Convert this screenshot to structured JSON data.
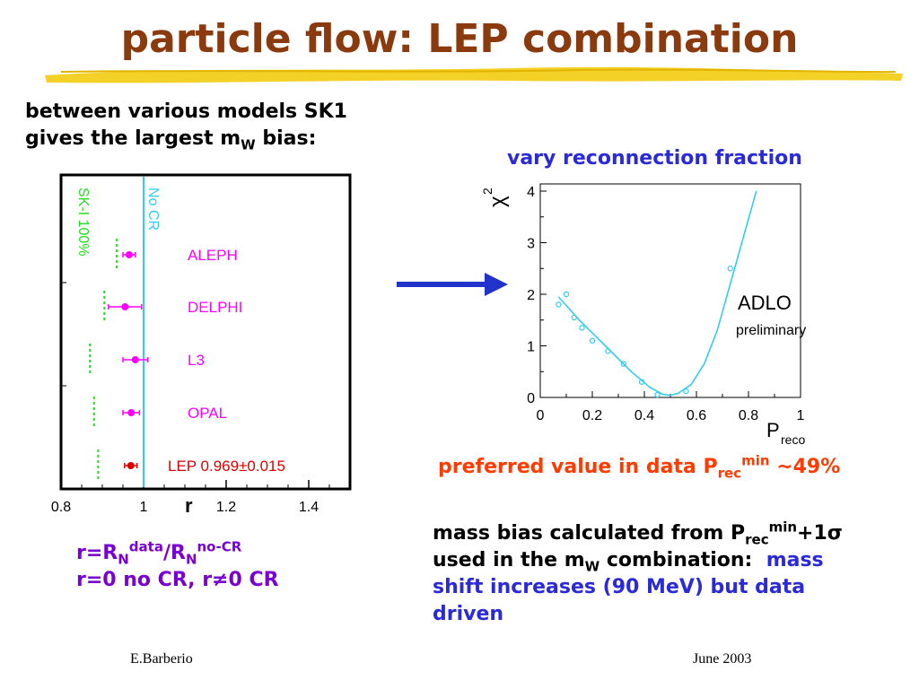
{
  "slide": {
    "title": "particle flow: LEP combination",
    "intro": {
      "line1": "between various models SK1",
      "line2_pre": "gives the largest m",
      "line2_sub": "W",
      "line2_post": " bias:"
    },
    "vary_label": "vary reconnection fraction",
    "preferred": {
      "pre": "preferred value in data P",
      "sub": "rec",
      "sup": "min",
      "post": " ~49%"
    },
    "bias": {
      "l1_pre": "mass bias calculated from P",
      "l1_sub": "rec",
      "l1_sup": "min",
      "l1_post": "+1σ",
      "l2_pre": "used in the m",
      "l2_sub": "W",
      "l2_post": " combination:",
      "l2_blue": "mass",
      "l3": "shift increases (90 MeV) but data",
      "l4": "driven"
    },
    "rdef": {
      "l1_a": "r=R",
      "l1_sub1": "N",
      "l1_sup1": "data",
      "l1_b": "/R",
      "l1_sub2": "N",
      "l1_sup2": "no-CR",
      "l2": "r=0 no CR, r≠0 CR"
    },
    "footer_left": "E.Barberio",
    "footer_right": "June 2003"
  },
  "colors": {
    "title": "#8b3a0e",
    "highlighter": "#f2c900",
    "magenta": "#ff00ff",
    "cyan": "#33ccee",
    "green": "#22dd22",
    "lep_red": "#dd0000",
    "arrow_blue": "#2233cc"
  },
  "chart_data": [
    {
      "type": "scatter",
      "xlabel": "r",
      "xlim": [
        0.8,
        1.5
      ],
      "xticks": [
        "0.8",
        "1",
        "1.2",
        "1.4"
      ],
      "xtick_values": [
        0.8,
        1.0,
        1.2,
        1.4
      ],
      "reference_line": {
        "x": 1.0,
        "label": "No CR"
      },
      "sk1_label": "SK-I 100%",
      "series": [
        {
          "name": "ALEPH",
          "r": 0.965,
          "err": 0.015,
          "sk1": 0.935
        },
        {
          "name": "DELPHI",
          "r": 0.955,
          "err": 0.04,
          "sk1": 0.905
        },
        {
          "name": "L3",
          "r": 0.98,
          "err": 0.03,
          "sk1": 0.87
        },
        {
          "name": "OPAL",
          "r": 0.97,
          "err": 0.02,
          "sk1": 0.88
        },
        {
          "name": "LEP 0.969±0.015",
          "r": 0.969,
          "err": 0.015,
          "sk1": 0.89
        }
      ]
    },
    {
      "type": "line",
      "title": "ADLO",
      "subtitle": "preliminary",
      "xlabel_main": "P",
      "xlabel_sub": "reco",
      "ylabel_main": "χ",
      "ylabel_sup": "2",
      "xlim": [
        0,
        1
      ],
      "ylim": [
        0,
        4
      ],
      "xticks": [
        "0",
        "0.2",
        "0.4",
        "0.6",
        "0.8",
        "1"
      ],
      "xtick_values": [
        0,
        0.2,
        0.4,
        0.6,
        0.8,
        1.0
      ],
      "yticks": [
        "0",
        "1",
        "2",
        "3",
        "4"
      ],
      "ytick_values": [
        0,
        1,
        2,
        3,
        4
      ],
      "points": {
        "x": [
          0.07,
          0.1,
          0.13,
          0.16,
          0.2,
          0.26,
          0.32,
          0.39,
          0.45,
          0.56,
          0.73
        ],
        "y": [
          1.8,
          2.0,
          1.55,
          1.35,
          1.1,
          0.9,
          0.65,
          0.3,
          0.05,
          0.12,
          2.5
        ]
      },
      "fit": {
        "x": [
          0.07,
          0.15,
          0.25,
          0.35,
          0.42,
          0.47,
          0.5,
          0.53,
          0.58,
          0.63,
          0.68,
          0.73,
          0.78,
          0.83
        ],
        "y": [
          1.95,
          1.5,
          1.0,
          0.5,
          0.2,
          0.06,
          0.04,
          0.08,
          0.25,
          0.65,
          1.3,
          2.2,
          3.1,
          4.0
        ]
      }
    }
  ]
}
